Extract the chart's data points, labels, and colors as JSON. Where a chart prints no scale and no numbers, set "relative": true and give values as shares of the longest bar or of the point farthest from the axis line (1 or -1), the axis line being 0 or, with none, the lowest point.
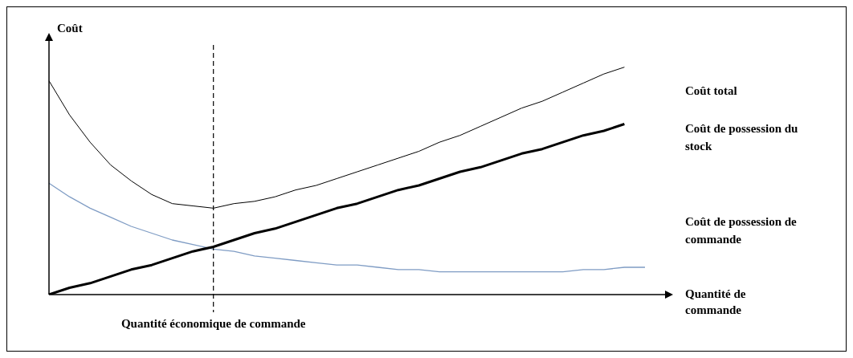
{
  "chart_data": {
    "type": "line",
    "relative": true,
    "xlabel": "Quantité de commande",
    "ylabel": "Coût",
    "legend": false,
    "marker": "none",
    "categories": [
      null,
      null,
      null,
      null,
      null,
      null,
      null,
      null,
      null,
      null,
      null,
      null,
      null,
      null,
      null,
      null,
      null,
      null,
      null,
      null,
      null,
      null,
      null,
      null,
      null,
      null,
      null,
      null,
      null,
      null
    ],
    "series": [
      {
        "name": "Coût total",
        "color": "#000000",
        "values": [
          0.94,
          0.79,
          0.67,
          0.57,
          0.5,
          0.44,
          0.4,
          0.39,
          0.38,
          0.4,
          0.41,
          0.43,
          0.46,
          0.48,
          0.51,
          0.54,
          0.57,
          0.6,
          0.63,
          0.67,
          0.7,
          0.74,
          0.78,
          0.82,
          0.85,
          0.89,
          0.93,
          0.97,
          1.0,
          null
        ]
      },
      {
        "name": "Coût de possession du stock",
        "color": "#000000",
        "values": [
          0,
          0.03,
          0.05,
          0.08,
          0.11,
          0.13,
          0.16,
          0.19,
          0.21,
          0.24,
          0.27,
          0.29,
          0.32,
          0.35,
          0.38,
          0.4,
          0.43,
          0.46,
          0.48,
          0.51,
          0.54,
          0.56,
          0.59,
          0.62,
          0.64,
          0.67,
          0.7,
          0.72,
          0.75,
          null
        ]
      },
      {
        "name": "Coût de possession de commande",
        "color": "#7f9cc4",
        "values": [
          0.49,
          0.43,
          0.38,
          0.34,
          0.3,
          0.27,
          0.24,
          0.22,
          0.2,
          0.19,
          0.17,
          0.16,
          0.15,
          0.14,
          0.13,
          0.13,
          0.12,
          0.11,
          0.11,
          0.1,
          0.1,
          0.1,
          0.1,
          0.1,
          0.1,
          0.1,
          0.11,
          0.11,
          0.12,
          0.12
        ]
      }
    ],
    "annotations": [
      "Quantité économique de commande"
    ]
  }
}
